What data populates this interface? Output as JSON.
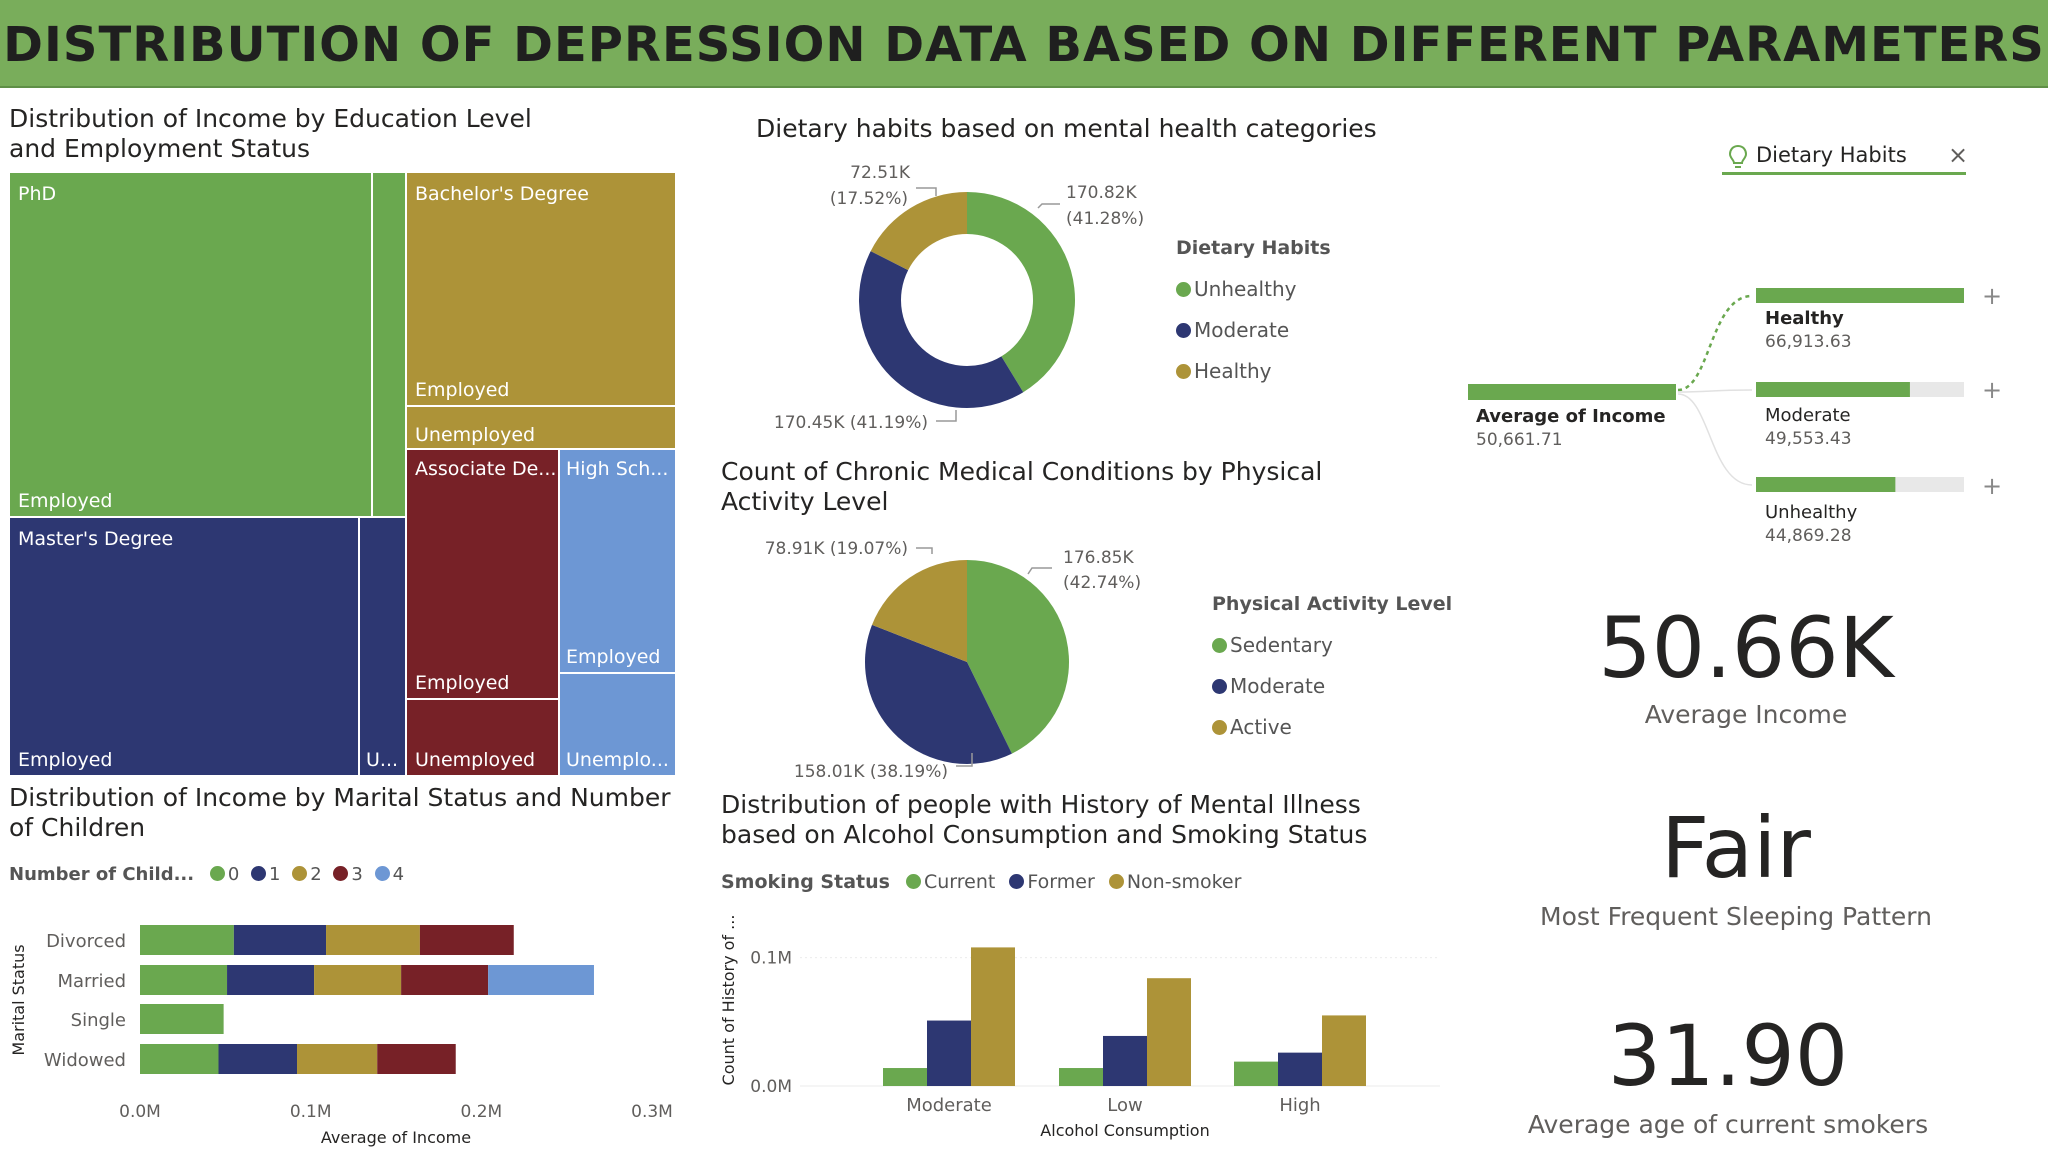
{
  "header": {
    "title": "DISTRIBUTION OF DEPRESSION DATA BASED ON DIFFERENT PARAMETERS"
  },
  "colors": {
    "green": "#6aa84f",
    "navy": "#2d3772",
    "gold": "#ad9338",
    "maroon": "#772127",
    "blue": "#6d97d4",
    "banner": "#79ad5b"
  },
  "treemap": {
    "title": "Distribution of Income by Education Level and Employment Status",
    "cells": [
      {
        "label": "PhD",
        "sub": "Employed"
      },
      {
        "label": "Master's Degree",
        "sub": "Employed",
        "sub2": "U..."
      },
      {
        "label": "Bachelor's Degree",
        "sub": "Employed",
        "sub2": "Unemployed"
      },
      {
        "label": "Associate De...",
        "sub": "Employed",
        "sub2": "Unemployed"
      },
      {
        "label": "High Sch...",
        "sub": "Employed",
        "sub2": "Unemplo..."
      }
    ]
  },
  "dietary": {
    "title": "Dietary habits based on mental health categories",
    "legend_title": "Dietary Habits",
    "legend": [
      "Unhealthy",
      "Moderate",
      "Healthy"
    ],
    "labels": {
      "unhealthy_val": "170.82K",
      "unhealthy_pct": "(41.28%)",
      "moderate": "170.45K (41.19%)",
      "healthy_val": "72.51K",
      "healthy_pct": "(17.52%)"
    }
  },
  "physical": {
    "title": "Count of Chronic Medical Conditions by Physical Activity Level",
    "legend_title": "Physical Activity Level",
    "legend": [
      "Sedentary",
      "Moderate",
      "Active"
    ],
    "labels": {
      "sedentary_val": "176.85K",
      "sedentary_pct": "(42.74%)",
      "moderate": "158.01K (38.19%)",
      "active": "78.91K (19.07%)"
    }
  },
  "decomp": {
    "filter_label": "Dietary Habits",
    "root_label": "Average of Income",
    "root_value": "50,661.71",
    "nodes": [
      {
        "label": "Healthy",
        "value": "66,913.63",
        "fill": 1.0
      },
      {
        "label": "Moderate",
        "value": "49,553.43",
        "fill": 0.74
      },
      {
        "label": "Unhealthy",
        "value": "44,869.28",
        "fill": 0.67
      }
    ],
    "expand_icon": "+"
  },
  "cards": [
    {
      "value": "50.66K",
      "label": "Average Income"
    },
    {
      "value": "Fair",
      "label": "Most Frequent Sleeping Pattern"
    },
    {
      "value": "31.90",
      "label": "Average age of current smokers"
    }
  ],
  "marital": {
    "title": "Distribution of Income by Marital Status and Number of Children",
    "legend_title": "Number of Child...",
    "legend": [
      "0",
      "1",
      "2",
      "3",
      "4"
    ]
  },
  "mental": {
    "title": "Distribution of people with History of Mental Illness based on Alcohol Consumption and Smoking Status",
    "legend_title": "Smoking Status",
    "legend": [
      "Current",
      "Former",
      "Non-smoker"
    ]
  },
  "chart_data": [
    {
      "type": "pie",
      "title": "Dietary habits based on mental health categories",
      "donut": true,
      "categories": [
        "Unhealthy",
        "Moderate",
        "Healthy"
      ],
      "values": [
        170820,
        170450,
        72510
      ],
      "percentages": [
        41.28,
        41.19,
        17.52
      ]
    },
    {
      "type": "pie",
      "title": "Count of Chronic Medical Conditions by Physical Activity Level",
      "categories": [
        "Sedentary",
        "Moderate",
        "Active"
      ],
      "values": [
        176850,
        158010,
        78910
      ],
      "percentages": [
        42.74,
        38.19,
        19.07
      ]
    },
    {
      "type": "bar",
      "orientation": "horizontal",
      "stacked": true,
      "title": "Distribution of Income by Marital Status and Number of Children",
      "categories": [
        "Divorced",
        "Married",
        "Single",
        "Widowed"
      ],
      "series": [
        {
          "name": "0",
          "values": [
            55000,
            51000,
            49000,
            46000
          ]
        },
        {
          "name": "1",
          "values": [
            54000,
            51000,
            0,
            46000
          ]
        },
        {
          "name": "2",
          "values": [
            55000,
            51000,
            0,
            47000
          ]
        },
        {
          "name": "3",
          "values": [
            55000,
            51000,
            0,
            46000
          ]
        },
        {
          "name": "4",
          "values": [
            0,
            62000,
            0,
            0
          ]
        }
      ],
      "xlabel": "Average of Income",
      "ylabel": "Marital Status",
      "xlim": [
        0,
        300000
      ],
      "xticks": [
        "0.0M",
        "0.1M",
        "0.2M",
        "0.3M"
      ]
    },
    {
      "type": "bar",
      "title": "Distribution of people with History of Mental Illness based on Alcohol Consumption and Smoking Status",
      "categories": [
        "Moderate",
        "Low",
        "High"
      ],
      "series": [
        {
          "name": "Current",
          "values": [
            14000,
            14000,
            19000
          ]
        },
        {
          "name": "Former",
          "values": [
            51000,
            39000,
            26000
          ]
        },
        {
          "name": "Non-smoker",
          "values": [
            108000,
            84000,
            55000
          ]
        }
      ],
      "xlabel": "Alcohol Consumption",
      "ylabel": "Count of History of ...",
      "ylim": [
        0,
        120000
      ],
      "yticks": [
        "0.0M",
        "0.1M"
      ]
    }
  ]
}
